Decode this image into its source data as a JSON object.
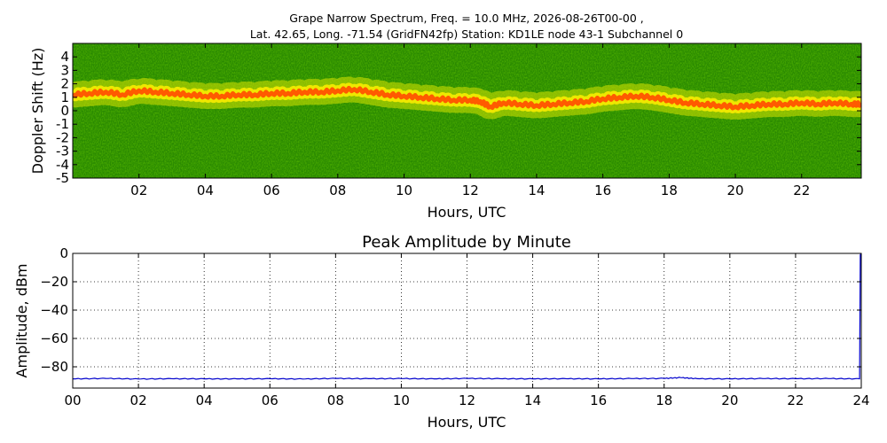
{
  "header": {
    "title_line1": "Grape Narrow Spectrum, Freq. = 10.0 MHz, 2026-08-26T00-00 ,",
    "title_line2": "Lat.  42.65, Long. -71.54 (GridFN42fp) Station: KD1LE node 43-1 Subchannel 0"
  },
  "colors": {
    "background_green": "#2a8a00",
    "noise_green": "#4fa000",
    "trace_orange": "#ff5a00",
    "halo_yellow": "#e8e800",
    "amplitude_line": "#0000cc"
  },
  "chart_data": [
    {
      "type": "heatmap",
      "title": "",
      "xlabel": "Hours, UTC",
      "ylabel": "Doppler Shift (Hz)",
      "xlim": [
        0,
        23.8
      ],
      "ylim": [
        -5,
        5
      ],
      "x_ticks": [
        2,
        4,
        6,
        8,
        10,
        12,
        14,
        16,
        18,
        20,
        22
      ],
      "x_tick_labels": [
        "02",
        "04",
        "06",
        "08",
        "10",
        "12",
        "14",
        "16",
        "18",
        "20",
        "22"
      ],
      "y_ticks": [
        4,
        3,
        2,
        1,
        0,
        -1,
        -2,
        -3,
        -4,
        -5
      ],
      "y_tick_labels": [
        "4",
        "3",
        "2",
        "1",
        "0",
        "-1",
        "-2",
        "-3",
        "-4",
        "-5"
      ],
      "grid": false,
      "doppler_trace": {
        "x": [
          0,
          0.5,
          1,
          1.5,
          2,
          2.5,
          3,
          3.5,
          4,
          4.5,
          5,
          5.5,
          6,
          6.5,
          7,
          7.5,
          8,
          8.5,
          9,
          9.5,
          10,
          10.5,
          11,
          11.5,
          12,
          12.3,
          12.6,
          13,
          13.5,
          14,
          14.5,
          15,
          15.5,
          16,
          16.5,
          17,
          17.5,
          18,
          18.5,
          19,
          19.5,
          20,
          20.5,
          21,
          21.5,
          22,
          22.5,
          23,
          23.5,
          23.8
        ],
        "y": [
          1.2,
          1.3,
          1.4,
          1.2,
          1.5,
          1.4,
          1.3,
          1.2,
          1.1,
          1.1,
          1.2,
          1.2,
          1.3,
          1.3,
          1.4,
          1.4,
          1.5,
          1.6,
          1.4,
          1.2,
          1.1,
          1.0,
          0.9,
          0.8,
          0.8,
          0.7,
          0.3,
          0.6,
          0.5,
          0.4,
          0.5,
          0.6,
          0.7,
          0.9,
          1.0,
          1.1,
          1.0,
          0.8,
          0.6,
          0.5,
          0.4,
          0.3,
          0.4,
          0.5,
          0.5,
          0.6,
          0.5,
          0.6,
          0.5,
          0.5
        ]
      }
    },
    {
      "type": "line",
      "title": "Peak Amplitude by Minute",
      "xlabel": "Hours, UTC",
      "ylabel": "Amplitude, dBm",
      "xlim": [
        0,
        24
      ],
      "ylim": [
        -95,
        0
      ],
      "x_ticks": [
        0,
        2,
        4,
        6,
        8,
        10,
        12,
        14,
        16,
        18,
        20,
        22,
        24
      ],
      "x_tick_labels": [
        "00",
        "02",
        "04",
        "06",
        "08",
        "10",
        "12",
        "14",
        "16",
        "18",
        "20",
        "22",
        "24"
      ],
      "y_ticks": [
        0,
        -20,
        -40,
        -60,
        -80
      ],
      "y_tick_labels": [
        "0",
        "−20",
        "−40",
        "−60",
        "−80"
      ],
      "grid": true,
      "series": [
        {
          "x": [
            0,
            1,
            2,
            3,
            4,
            5,
            6,
            7,
            8,
            9,
            10,
            11,
            12,
            13,
            14,
            15,
            16,
            17,
            18,
            18.5,
            19,
            20,
            21,
            22,
            23,
            23.95,
            23.97,
            24
          ],
          "values": [
            -88.5,
            -88.2,
            -88.6,
            -88.4,
            -88.5,
            -88.5,
            -88.4,
            -88.6,
            -88.2,
            -88.4,
            -88.3,
            -88.5,
            -88.2,
            -88.4,
            -88.5,
            -88.4,
            -88.5,
            -88.3,
            -88.2,
            -87.6,
            -88.4,
            -88.5,
            -88.3,
            -88.4,
            -88.3,
            -88.5,
            -1,
            0
          ]
        }
      ]
    }
  ]
}
